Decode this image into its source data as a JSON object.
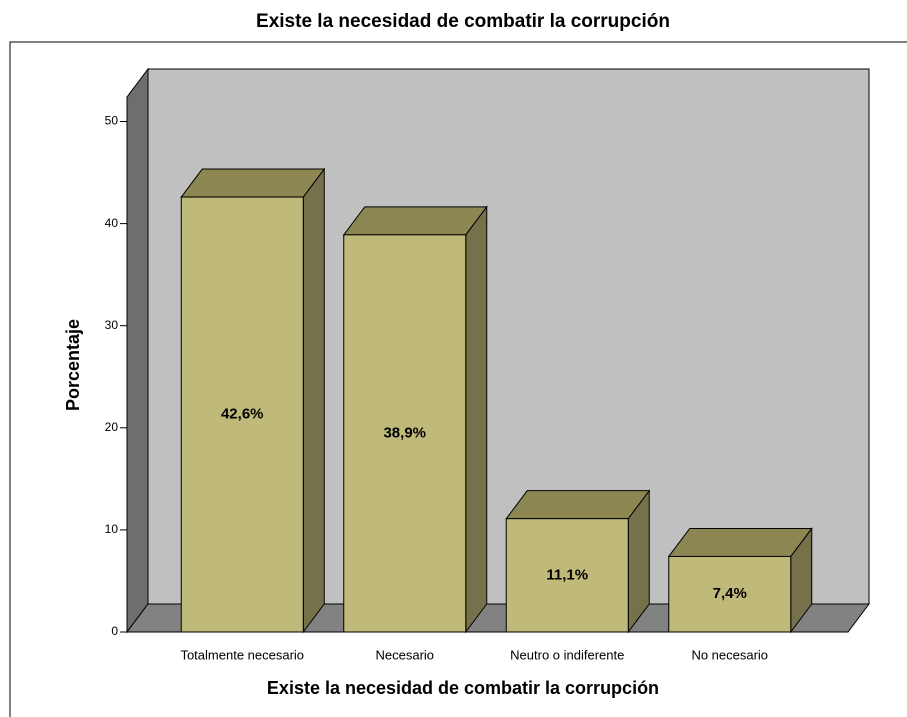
{
  "chart_data": {
    "type": "bar3d",
    "title": "Existe la necesidad de combatir la corrupción",
    "xlabel": "Existe la necesidad de combatir la corrupción",
    "ylabel": "Porcentaje",
    "categories": [
      "Totalmente necesario",
      "Necesario",
      "Neutro o indiferente",
      "No necesario"
    ],
    "values": [
      42.6,
      38.9,
      11.1,
      7.4
    ],
    "value_labels": [
      "42,6%",
      "38,9%",
      "11,1%",
      "7,4%"
    ],
    "color": "#bfb97a",
    "ylim": [
      0,
      52.4
    ],
    "yticks": [
      0,
      10,
      20,
      30,
      40,
      50
    ]
  }
}
